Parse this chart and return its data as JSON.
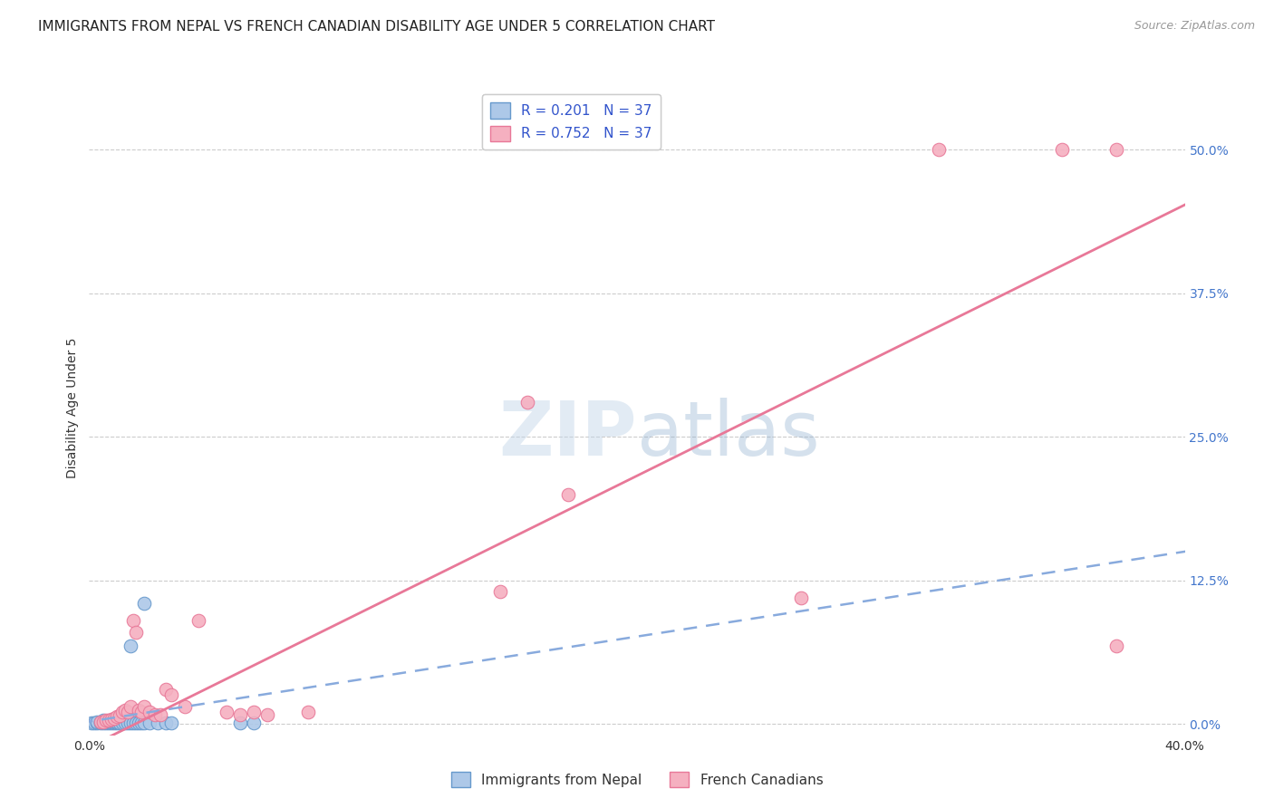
{
  "title": "IMMIGRANTS FROM NEPAL VS FRENCH CANADIAN DISABILITY AGE UNDER 5 CORRELATION CHART",
  "source": "Source: ZipAtlas.com",
  "ylabel": "Disability Age Under 5",
  "ytick_labels": [
    "0.0%",
    "12.5%",
    "25.0%",
    "37.5%",
    "50.0%"
  ],
  "ytick_values": [
    0.0,
    0.125,
    0.25,
    0.375,
    0.5
  ],
  "xlim": [
    0.0,
    0.4
  ],
  "ylim": [
    -0.01,
    0.56
  ],
  "nepal_R": "0.201",
  "nepal_N": "37",
  "french_R": "0.752",
  "french_N": "37",
  "nepal_color": "#adc8e8",
  "nepal_edge_color": "#6699cc",
  "french_color": "#f5b0c0",
  "french_edge_color": "#e87898",
  "nepal_line_color": "#88aadd",
  "french_line_color": "#e87898",
  "nepal_line_m": 0.37,
  "nepal_line_b": 0.002,
  "french_line_m": 1.18,
  "french_line_b": -0.02,
  "watermark_text": "ZIPatlas",
  "title_fontsize": 11,
  "source_fontsize": 9,
  "axis_label_fontsize": 10,
  "tick_fontsize": 10,
  "legend_fontsize": 11,
  "nepal_scatter_x": [
    0.001,
    0.002,
    0.003,
    0.003,
    0.004,
    0.004,
    0.005,
    0.005,
    0.005,
    0.006,
    0.006,
    0.007,
    0.007,
    0.008,
    0.008,
    0.009,
    0.009,
    0.01,
    0.01,
    0.011,
    0.012,
    0.013,
    0.014,
    0.015,
    0.016,
    0.017,
    0.018,
    0.019,
    0.02,
    0.022,
    0.025,
    0.028,
    0.03,
    0.02,
    0.015,
    0.055,
    0.06
  ],
  "nepal_scatter_y": [
    0.001,
    0.001,
    0.001,
    0.002,
    0.001,
    0.002,
    0.001,
    0.002,
    0.003,
    0.001,
    0.002,
    0.001,
    0.002,
    0.001,
    0.002,
    0.001,
    0.002,
    0.001,
    0.002,
    0.001,
    0.001,
    0.001,
    0.001,
    0.001,
    0.001,
    0.001,
    0.001,
    0.001,
    0.001,
    0.001,
    0.001,
    0.001,
    0.001,
    0.105,
    0.068,
    0.001,
    0.001
  ],
  "french_scatter_x": [
    0.004,
    0.005,
    0.006,
    0.007,
    0.008,
    0.009,
    0.01,
    0.011,
    0.012,
    0.013,
    0.014,
    0.015,
    0.016,
    0.017,
    0.018,
    0.019,
    0.02,
    0.022,
    0.024,
    0.026,
    0.028,
    0.03,
    0.035,
    0.04,
    0.05,
    0.055,
    0.06,
    0.065,
    0.08,
    0.15,
    0.16,
    0.175,
    0.26,
    0.31,
    0.355,
    0.375,
    0.375
  ],
  "french_scatter_y": [
    0.002,
    0.002,
    0.003,
    0.003,
    0.004,
    0.005,
    0.006,
    0.007,
    0.01,
    0.012,
    0.01,
    0.015,
    0.09,
    0.08,
    0.012,
    0.01,
    0.015,
    0.01,
    0.008,
    0.008,
    0.03,
    0.025,
    0.015,
    0.09,
    0.01,
    0.008,
    0.01,
    0.008,
    0.01,
    0.115,
    0.28,
    0.2,
    0.11,
    0.5,
    0.5,
    0.5,
    0.068
  ]
}
